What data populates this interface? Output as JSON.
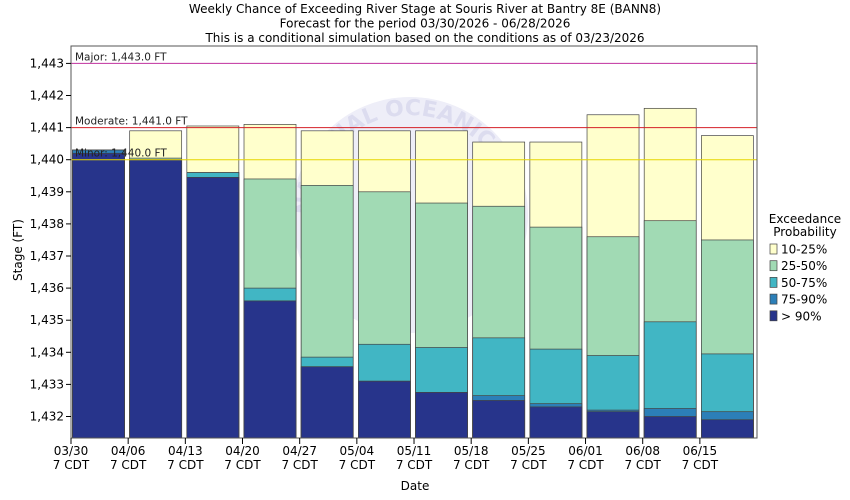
{
  "chart_data": {
    "type": "bar",
    "title_lines": [
      "Weekly Chance of Exceeding River Stage at Souris River at Bantry 8E (BANN8)",
      "Forecast for the period 03/30/2026 - 06/28/2026",
      "This is a conditional simulation based on the conditions as of 03/23/2026"
    ],
    "xlabel": "Date",
    "ylabel": "Stage (FT)",
    "ylim": [
      1431.4,
      1443.5
    ],
    "y_ticks": [
      "1,432",
      "1,433",
      "1,434",
      "1,435",
      "1,436",
      "1,437",
      "1,438",
      "1,439",
      "1,440",
      "1,441",
      "1,442",
      "1,443"
    ],
    "y_tick_values": [
      1432,
      1433,
      1434,
      1435,
      1436,
      1437,
      1438,
      1439,
      1440,
      1441,
      1442,
      1443
    ],
    "categories": [
      [
        "03/30",
        "7 CDT"
      ],
      [
        "04/06",
        "7 CDT"
      ],
      [
        "04/13",
        "7 CDT"
      ],
      [
        "04/20",
        "7 CDT"
      ],
      [
        "04/27",
        "7 CDT"
      ],
      [
        "05/04",
        "7 CDT"
      ],
      [
        "05/11",
        "7 CDT"
      ],
      [
        "05/18",
        "7 CDT"
      ],
      [
        "05/25",
        "7 CDT"
      ],
      [
        "06/01",
        "7 CDT"
      ],
      [
        "06/08",
        "7 CDT"
      ],
      [
        "06/15",
        "7 CDT"
      ]
    ],
    "series": [
      {
        "name": "> 90%",
        "color": "#27348b",
        "values": [
          1440.2,
          1440.0,
          1439.45,
          1435.6,
          1433.55,
          1433.1,
          1432.75,
          1432.5,
          1432.3,
          1432.15,
          1432.0,
          1431.9
        ]
      },
      {
        "name": "75-90%",
        "color": "#2c7fb8",
        "values": [
          1440.3,
          1440.0,
          1439.45,
          1435.6,
          1433.55,
          1433.1,
          1432.75,
          1432.65,
          1432.4,
          1432.2,
          1432.25,
          1432.15
        ]
      },
      {
        "name": "50-75%",
        "color": "#41b6c4",
        "values": [
          1440.3,
          1440.0,
          1439.6,
          1436.0,
          1433.85,
          1434.25,
          1434.15,
          1434.45,
          1434.1,
          1433.9,
          1434.95,
          1433.95
        ]
      },
      {
        "name": "25-50%",
        "color": "#a1dab4",
        "values": [
          1440.3,
          1440.05,
          1439.6,
          1439.4,
          1439.2,
          1439.0,
          1438.65,
          1438.55,
          1437.9,
          1437.6,
          1438.1,
          1437.5
        ]
      },
      {
        "name": "10-25%",
        "color": "#ffffcc",
        "values": [
          1440.3,
          1440.9,
          1441.05,
          1441.1,
          1440.9,
          1440.9,
          1440.9,
          1440.55,
          1440.55,
          1441.4,
          1441.6,
          1440.75
        ]
      }
    ],
    "flood_stages": [
      {
        "label": "Major: 1,443.0 FT",
        "value": 1443.0,
        "color": "#c0309e"
      },
      {
        "label": "Moderate: 1,441.0 FT",
        "value": 1441.0,
        "color": "#d42027"
      },
      {
        "label": "Minor: 1,440.0 FT",
        "value": 1440.0,
        "color": "#e6d500"
      }
    ],
    "legend": {
      "title_lines": [
        "Exceedance",
        "Probability"
      ],
      "order": [
        "10-25%",
        "25-50%",
        "50-75%",
        "75-90%",
        "> 90%"
      ],
      "placement": "right"
    },
    "watermark": "NATIONAL OCEANIC AND ATMOSPHERIC ADMINISTRATION"
  }
}
